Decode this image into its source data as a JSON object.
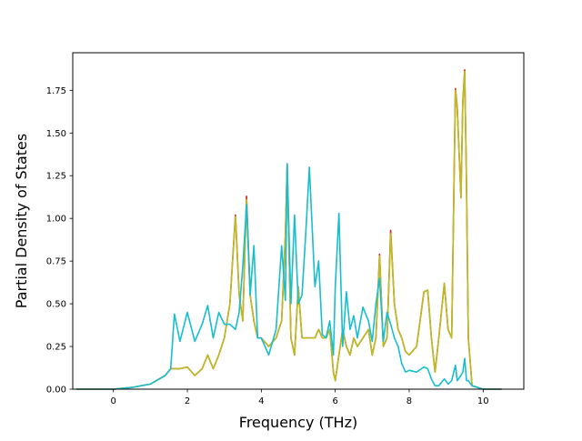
{
  "chart_data": {
    "type": "line",
    "title": "",
    "xlabel": "Frequency (THz)",
    "ylabel": "Partial Density of States",
    "xlim": [
      -1.1,
      11.1
    ],
    "ylim": [
      0.0,
      1.97
    ],
    "xticks": [
      0,
      2,
      4,
      6,
      8,
      10
    ],
    "xtick_labels": [
      "0",
      "2",
      "4",
      "6",
      "8",
      "10"
    ],
    "yticks": [
      0.0,
      0.25,
      0.5,
      0.75,
      1.0,
      1.25,
      1.5,
      1.75
    ],
    "ytick_labels": [
      "0.00",
      "0.25",
      "0.50",
      "0.75",
      "1.00",
      "1.25",
      "1.50",
      "1.75"
    ],
    "grid": false,
    "legend": "none",
    "series": [
      {
        "color": "#d62728",
        "x": [
          -1.0,
          0.0,
          0.5,
          1.0,
          1.4,
          1.55,
          1.65,
          1.8,
          2.0,
          2.2,
          2.4,
          2.55,
          2.7,
          2.85,
          3.0,
          3.15,
          3.3,
          3.4,
          3.5,
          3.6,
          3.7,
          3.8,
          3.9,
          4.0,
          4.2,
          4.4,
          4.55,
          4.65,
          4.7,
          4.8,
          4.9,
          5.0,
          5.1,
          5.2,
          5.3,
          5.45,
          5.55,
          5.65,
          5.75,
          5.85,
          5.95,
          6.0,
          6.1,
          6.2,
          6.3,
          6.4,
          6.5,
          6.6,
          6.75,
          6.9,
          7.0,
          7.1,
          7.2,
          7.3,
          7.4,
          7.5,
          7.6,
          7.7,
          7.8,
          7.9,
          8.0,
          8.2,
          8.4,
          8.5,
          8.6,
          8.7,
          8.8,
          8.95,
          9.05,
          9.15,
          9.25,
          9.3,
          9.4,
          9.45,
          9.5,
          9.55,
          9.6,
          9.7,
          10.0,
          10.5
        ],
        "y": [
          0.0,
          0.0,
          0.01,
          0.03,
          0.08,
          0.12,
          0.12,
          0.12,
          0.13,
          0.08,
          0.12,
          0.2,
          0.12,
          0.2,
          0.3,
          0.5,
          1.02,
          0.55,
          0.4,
          1.13,
          0.55,
          0.4,
          0.3,
          0.3,
          0.25,
          0.3,
          0.4,
          0.9,
          1.32,
          0.3,
          0.2,
          0.6,
          0.3,
          0.3,
          0.3,
          0.3,
          0.35,
          0.3,
          0.3,
          0.35,
          0.1,
          0.05,
          0.2,
          0.35,
          0.25,
          0.2,
          0.3,
          0.25,
          0.3,
          0.35,
          0.2,
          0.3,
          0.79,
          0.25,
          0.3,
          0.93,
          0.5,
          0.35,
          0.3,
          0.22,
          0.2,
          0.25,
          0.57,
          0.58,
          0.3,
          0.1,
          0.3,
          0.62,
          0.35,
          0.3,
          1.76,
          1.65,
          1.12,
          1.68,
          1.87,
          1.2,
          0.3,
          0.02,
          0.0,
          0.0
        ]
      },
      {
        "color": "#bcbd22",
        "x": [
          -1.0,
          0.0,
          0.5,
          1.0,
          1.4,
          1.55,
          1.65,
          1.8,
          2.0,
          2.2,
          2.4,
          2.55,
          2.7,
          2.85,
          3.0,
          3.15,
          3.3,
          3.4,
          3.5,
          3.6,
          3.7,
          3.8,
          3.9,
          4.0,
          4.2,
          4.4,
          4.55,
          4.65,
          4.7,
          4.8,
          4.9,
          5.0,
          5.1,
          5.2,
          5.3,
          5.45,
          5.55,
          5.65,
          5.75,
          5.85,
          5.95,
          6.0,
          6.1,
          6.2,
          6.3,
          6.4,
          6.5,
          6.6,
          6.75,
          6.9,
          7.0,
          7.1,
          7.2,
          7.3,
          7.4,
          7.5,
          7.6,
          7.7,
          7.8,
          7.9,
          8.0,
          8.2,
          8.4,
          8.5,
          8.6,
          8.7,
          8.8,
          8.95,
          9.05,
          9.15,
          9.25,
          9.3,
          9.4,
          9.45,
          9.5,
          9.55,
          9.6,
          9.7,
          10.0,
          10.5
        ],
        "y": [
          0.0,
          0.0,
          0.01,
          0.03,
          0.08,
          0.12,
          0.12,
          0.12,
          0.13,
          0.08,
          0.12,
          0.2,
          0.12,
          0.2,
          0.3,
          0.5,
          1.01,
          0.55,
          0.4,
          1.11,
          0.55,
          0.4,
          0.3,
          0.3,
          0.25,
          0.3,
          0.4,
          0.9,
          1.31,
          0.3,
          0.2,
          0.6,
          0.3,
          0.3,
          0.3,
          0.3,
          0.35,
          0.3,
          0.3,
          0.35,
          0.1,
          0.05,
          0.2,
          0.35,
          0.25,
          0.2,
          0.3,
          0.25,
          0.3,
          0.35,
          0.2,
          0.3,
          0.78,
          0.25,
          0.3,
          0.91,
          0.5,
          0.35,
          0.3,
          0.22,
          0.2,
          0.25,
          0.57,
          0.58,
          0.3,
          0.1,
          0.3,
          0.62,
          0.35,
          0.3,
          1.75,
          1.64,
          1.12,
          1.67,
          1.86,
          1.2,
          0.3,
          0.02,
          0.0,
          0.0
        ]
      },
      {
        "color": "#17becf",
        "x": [
          -1.0,
          0.0,
          0.5,
          1.0,
          1.4,
          1.55,
          1.65,
          1.8,
          2.0,
          2.2,
          2.4,
          2.55,
          2.7,
          2.85,
          3.0,
          3.15,
          3.3,
          3.4,
          3.5,
          3.6,
          3.7,
          3.8,
          3.9,
          4.0,
          4.2,
          4.4,
          4.55,
          4.65,
          4.7,
          4.8,
          4.9,
          5.0,
          5.1,
          5.2,
          5.3,
          5.45,
          5.55,
          5.65,
          5.75,
          5.85,
          5.95,
          6.0,
          6.1,
          6.2,
          6.3,
          6.4,
          6.5,
          6.6,
          6.75,
          6.9,
          7.0,
          7.1,
          7.2,
          7.3,
          7.4,
          7.5,
          7.6,
          7.7,
          7.8,
          7.9,
          8.0,
          8.2,
          8.4,
          8.5,
          8.6,
          8.7,
          8.8,
          8.95,
          9.05,
          9.15,
          9.25,
          9.3,
          9.4,
          9.45,
          9.5,
          9.55,
          9.6,
          9.7,
          10.0,
          10.5
        ],
        "y": [
          0.0,
          0.0,
          0.01,
          0.03,
          0.08,
          0.12,
          0.44,
          0.28,
          0.45,
          0.28,
          0.38,
          0.49,
          0.3,
          0.45,
          0.38,
          0.38,
          0.35,
          0.45,
          0.72,
          1.08,
          0.55,
          0.84,
          0.3,
          0.3,
          0.2,
          0.35,
          0.84,
          0.52,
          1.32,
          0.5,
          1.02,
          0.5,
          0.55,
          0.9,
          1.3,
          0.6,
          0.75,
          0.32,
          0.3,
          0.4,
          0.2,
          0.6,
          1.03,
          0.25,
          0.57,
          0.35,
          0.43,
          0.3,
          0.48,
          0.4,
          0.28,
          0.5,
          0.65,
          0.28,
          0.45,
          0.38,
          0.3,
          0.25,
          0.15,
          0.1,
          0.11,
          0.1,
          0.13,
          0.12,
          0.06,
          0.02,
          0.02,
          0.06,
          0.03,
          0.05,
          0.14,
          0.05,
          0.08,
          0.1,
          0.18,
          0.05,
          0.05,
          0.02,
          0.0,
          0.0
        ]
      }
    ]
  }
}
